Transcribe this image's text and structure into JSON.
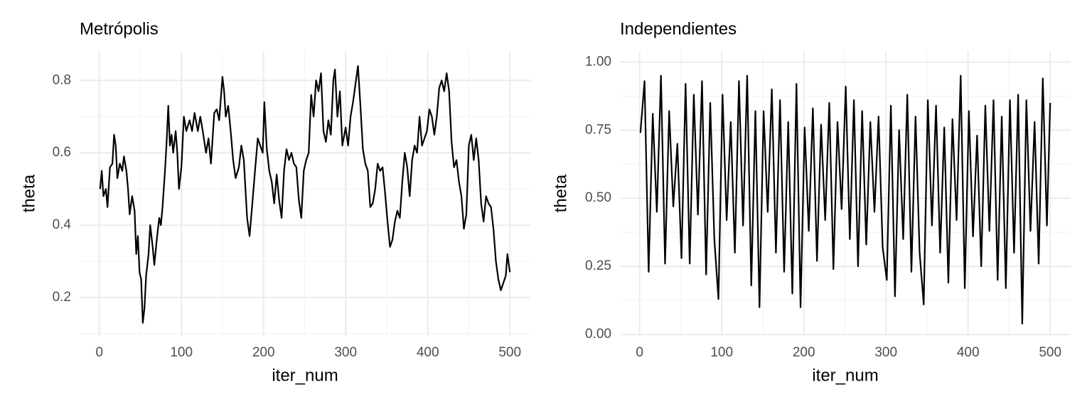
{
  "chart_data": [
    {
      "type": "line",
      "title": "Metrópolis",
      "xlabel": "iter_num",
      "ylabel": "theta",
      "grid": true,
      "color": "#000000",
      "xlim": [
        -23.95,
        524.95
      ],
      "ylim": [
        0.094,
        0.881
      ],
      "xticks": [
        0,
        100,
        200,
        300,
        400,
        500
      ],
      "yticks": [
        0.2,
        0.4,
        0.6,
        0.8
      ],
      "xminor_ticks": [
        50,
        150,
        250,
        350,
        450
      ],
      "yminor_ticks": [
        0.1,
        0.3,
        0.5,
        0.7
      ],
      "x": [
        1,
        3,
        5,
        8,
        10,
        13,
        16,
        18,
        20,
        22,
        25,
        28,
        30,
        33,
        35,
        37,
        40,
        43,
        45,
        47,
        49,
        51,
        53,
        55,
        57,
        60,
        62,
        65,
        67,
        70,
        73,
        75,
        77,
        80,
        82,
        84,
        86,
        88,
        90,
        93,
        95,
        97,
        100,
        103,
        106,
        110,
        113,
        116,
        120,
        123,
        126,
        130,
        133,
        136,
        140,
        143,
        146,
        150,
        152,
        154,
        157,
        160,
        163,
        166,
        170,
        173,
        176,
        180,
        183,
        186,
        190,
        193,
        196,
        199,
        201,
        204,
        207,
        210,
        213,
        216,
        219,
        222,
        225,
        228,
        231,
        234,
        237,
        240,
        243,
        246,
        249,
        252,
        255,
        258,
        261,
        264,
        267,
        270,
        273,
        276,
        279,
        282,
        285,
        287,
        290,
        293,
        296,
        300,
        303,
        306,
        309,
        312,
        315,
        318,
        321,
        324,
        327,
        330,
        333,
        336,
        339,
        342,
        345,
        348,
        351,
        354,
        357,
        360,
        363,
        366,
        369,
        372,
        375,
        378,
        381,
        384,
        387,
        390,
        393,
        396,
        399,
        402,
        405,
        408,
        411,
        414,
        417,
        420,
        423,
        426,
        429,
        432,
        435,
        438,
        441,
        444,
        447,
        450,
        453,
        456,
        459,
        462,
        465,
        468,
        471,
        474,
        477,
        480,
        483,
        486,
        489,
        492,
        495,
        497,
        500
      ],
      "values": [
        0.5,
        0.55,
        0.48,
        0.5,
        0.45,
        0.56,
        0.57,
        0.65,
        0.62,
        0.53,
        0.57,
        0.55,
        0.59,
        0.55,
        0.5,
        0.43,
        0.48,
        0.44,
        0.32,
        0.37,
        0.27,
        0.25,
        0.13,
        0.17,
        0.26,
        0.32,
        0.4,
        0.34,
        0.29,
        0.36,
        0.42,
        0.4,
        0.45,
        0.55,
        0.63,
        0.73,
        0.62,
        0.65,
        0.6,
        0.66,
        0.6,
        0.5,
        0.56,
        0.7,
        0.66,
        0.69,
        0.66,
        0.71,
        0.66,
        0.7,
        0.66,
        0.6,
        0.64,
        0.57,
        0.71,
        0.72,
        0.69,
        0.81,
        0.77,
        0.7,
        0.73,
        0.66,
        0.58,
        0.53,
        0.56,
        0.62,
        0.58,
        0.42,
        0.37,
        0.45,
        0.56,
        0.64,
        0.62,
        0.6,
        0.74,
        0.61,
        0.55,
        0.52,
        0.46,
        0.54,
        0.47,
        0.42,
        0.55,
        0.61,
        0.58,
        0.6,
        0.57,
        0.56,
        0.47,
        0.42,
        0.55,
        0.58,
        0.6,
        0.76,
        0.7,
        0.8,
        0.77,
        0.82,
        0.66,
        0.63,
        0.69,
        0.65,
        0.8,
        0.83,
        0.7,
        0.77,
        0.62,
        0.67,
        0.62,
        0.7,
        0.74,
        0.79,
        0.84,
        0.73,
        0.61,
        0.57,
        0.55,
        0.45,
        0.46,
        0.5,
        0.57,
        0.55,
        0.56,
        0.49,
        0.41,
        0.34,
        0.36,
        0.41,
        0.44,
        0.42,
        0.52,
        0.6,
        0.56,
        0.48,
        0.58,
        0.62,
        0.6,
        0.7,
        0.62,
        0.64,
        0.66,
        0.72,
        0.7,
        0.65,
        0.7,
        0.78,
        0.8,
        0.77,
        0.82,
        0.77,
        0.63,
        0.56,
        0.58,
        0.52,
        0.48,
        0.39,
        0.43,
        0.62,
        0.65,
        0.58,
        0.64,
        0.58,
        0.46,
        0.41,
        0.48,
        0.46,
        0.45,
        0.39,
        0.3,
        0.25,
        0.22,
        0.24,
        0.26,
        0.32,
        0.27
      ]
    },
    {
      "type": "line",
      "title": "Independientes",
      "xlabel": "iter_num",
      "ylabel": "theta",
      "grid": true,
      "color": "#000000",
      "xlim": [
        -23.95,
        524.95
      ],
      "ylim": [
        -0.005,
        1.04
      ],
      "xticks": [
        0,
        100,
        200,
        300,
        400,
        500
      ],
      "yticks": [
        {
          "value": 0,
          "label": "0.00"
        },
        {
          "value": 0.25,
          "label": "0.25"
        },
        {
          "value": 0.5,
          "label": "0.50"
        },
        {
          "value": 0.75,
          "label": "0.75"
        },
        {
          "value": 1,
          "label": "1.00"
        }
      ],
      "xminor_ticks": [
        50,
        150,
        250,
        350,
        450
      ],
      "yminor_ticks": [
        0.125,
        0.375,
        0.625,
        0.875
      ],
      "x": [
        1,
        6,
        11,
        16,
        21,
        26,
        31,
        36,
        41,
        46,
        51,
        56,
        61,
        66,
        71,
        76,
        81,
        86,
        91,
        96,
        101,
        106,
        111,
        116,
        121,
        126,
        131,
        136,
        141,
        146,
        151,
        156,
        161,
        166,
        171,
        176,
        181,
        186,
        191,
        196,
        201,
        206,
        211,
        216,
        221,
        226,
        231,
        236,
        241,
        246,
        251,
        256,
        261,
        266,
        271,
        276,
        281,
        286,
        291,
        296,
        301,
        306,
        311,
        316,
        321,
        326,
        331,
        336,
        341,
        346,
        351,
        356,
        361,
        366,
        371,
        376,
        381,
        386,
        391,
        396,
        401,
        406,
        411,
        416,
        421,
        426,
        431,
        436,
        441,
        446,
        451,
        456,
        461,
        466,
        471,
        476,
        481,
        486,
        491,
        496,
        500
      ],
      "values": [
        0.74,
        0.93,
        0.23,
        0.81,
        0.45,
        0.95,
        0.26,
        0.82,
        0.47,
        0.7,
        0.28,
        0.92,
        0.26,
        0.88,
        0.44,
        0.93,
        0.22,
        0.85,
        0.35,
        0.13,
        0.88,
        0.42,
        0.78,
        0.3,
        0.93,
        0.4,
        0.95,
        0.18,
        0.82,
        0.1,
        0.82,
        0.45,
        0.9,
        0.3,
        0.86,
        0.23,
        0.78,
        0.15,
        0.92,
        0.1,
        0.76,
        0.38,
        0.83,
        0.27,
        0.77,
        0.42,
        0.85,
        0.24,
        0.78,
        0.46,
        0.91,
        0.35,
        0.86,
        0.25,
        0.82,
        0.33,
        0.78,
        0.45,
        0.8,
        0.32,
        0.2,
        0.84,
        0.14,
        0.75,
        0.35,
        0.88,
        0.23,
        0.8,
        0.3,
        0.11,
        0.86,
        0.4,
        0.84,
        0.3,
        0.76,
        0.19,
        0.79,
        0.42,
        0.95,
        0.17,
        0.82,
        0.36,
        0.73,
        0.25,
        0.84,
        0.38,
        0.86,
        0.2,
        0.8,
        0.17,
        0.86,
        0.3,
        0.88,
        0.04,
        0.86,
        0.38,
        0.78,
        0.26,
        0.94,
        0.4,
        0.85
      ]
    }
  ]
}
